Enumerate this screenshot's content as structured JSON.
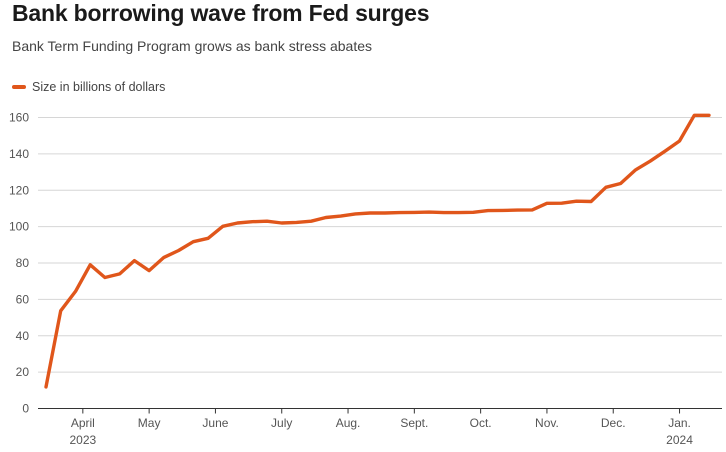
{
  "title": "Bank borrowing wave from Fed surges",
  "subtitle": "Bank Term Funding Program grows as bank stress abates",
  "chart_data": {
    "type": "line",
    "title": "Bank borrowing wave from Fed surges",
    "subtitle": "Bank Term Funding Program grows as bank stress abates",
    "xlabel": "",
    "ylabel": "",
    "ylim": [
      0,
      160
    ],
    "y_ticks": [
      "0",
      "20",
      "40",
      "60",
      "80",
      "100",
      "120",
      "140",
      "160"
    ],
    "x_ticks": [
      {
        "label": "April",
        "sublabel": "2023",
        "x": 2.5
      },
      {
        "label": "May",
        "sublabel": "",
        "x": 7
      },
      {
        "label": "June",
        "sublabel": "",
        "x": 11.5
      },
      {
        "label": "July",
        "sublabel": "",
        "x": 16
      },
      {
        "label": "Aug.",
        "sublabel": "",
        "x": 20.5
      },
      {
        "label": "Sept.",
        "sublabel": "",
        "x": 25
      },
      {
        "label": "Oct.",
        "sublabel": "",
        "x": 29.5
      },
      {
        "label": "Nov.",
        "sublabel": "",
        "x": 34
      },
      {
        "label": "Dec.",
        "sublabel": "",
        "x": 38.5
      },
      {
        "label": "Jan.",
        "sublabel": "2024",
        "x": 43
      }
    ],
    "grid": true,
    "legend": "top-left",
    "series": [
      {
        "name": "Size in billions of dollars",
        "color": "#e0561b",
        "x": [
          0,
          1,
          2,
          3,
          4,
          5,
          6,
          7,
          8,
          9,
          10,
          11,
          12,
          13,
          14,
          15,
          16,
          17,
          18,
          19,
          20,
          21,
          22,
          23,
          24,
          25,
          26,
          27,
          28,
          29,
          30,
          31,
          32,
          33,
          34,
          35,
          36,
          37,
          38,
          39,
          40,
          41,
          42,
          43,
          44,
          45
        ],
        "values": [
          11.9,
          53.7,
          64.4,
          79.0,
          72.0,
          74.0,
          81.3,
          75.8,
          83.1,
          86.9,
          91.7,
          93.6,
          100.2,
          102.0,
          102.7,
          103.0,
          102.0,
          102.3,
          103.0,
          105.0,
          105.8,
          107.0,
          107.5,
          107.5,
          107.7,
          107.8,
          108.0,
          107.7,
          107.7,
          107.9,
          108.8,
          108.9,
          109.1,
          109.2,
          112.8,
          112.9,
          114.0,
          113.8,
          121.6,
          123.7,
          131.1,
          136.0,
          141.4,
          147.1,
          161.2,
          161.2
        ]
      }
    ]
  }
}
